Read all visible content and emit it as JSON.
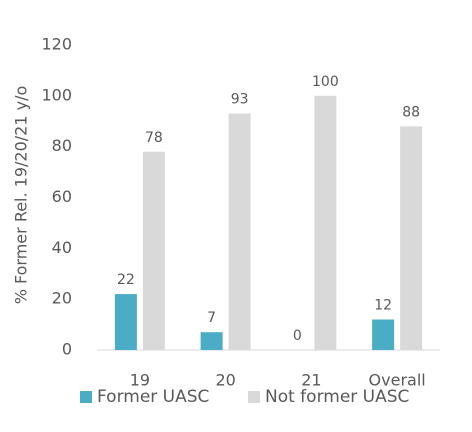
{
  "chart_data": {
    "type": "bar",
    "y_label": "% Former Rel. 19/20/21 y/o",
    "categories": [
      "19",
      "20",
      "21",
      "Overall"
    ],
    "series": [
      {
        "name": "Former UASC",
        "color": "#4bacc6",
        "values": [
          22,
          7,
          0,
          12
        ]
      },
      {
        "name": "Not former UASC",
        "color": "#d9d9d9",
        "values": [
          78,
          93,
          100,
          88
        ]
      }
    ],
    "ylim": [
      0,
      120
    ],
    "yticks": [
      0,
      20,
      40,
      60,
      80,
      100,
      120
    ],
    "grid": false,
    "legend": "bottom"
  }
}
